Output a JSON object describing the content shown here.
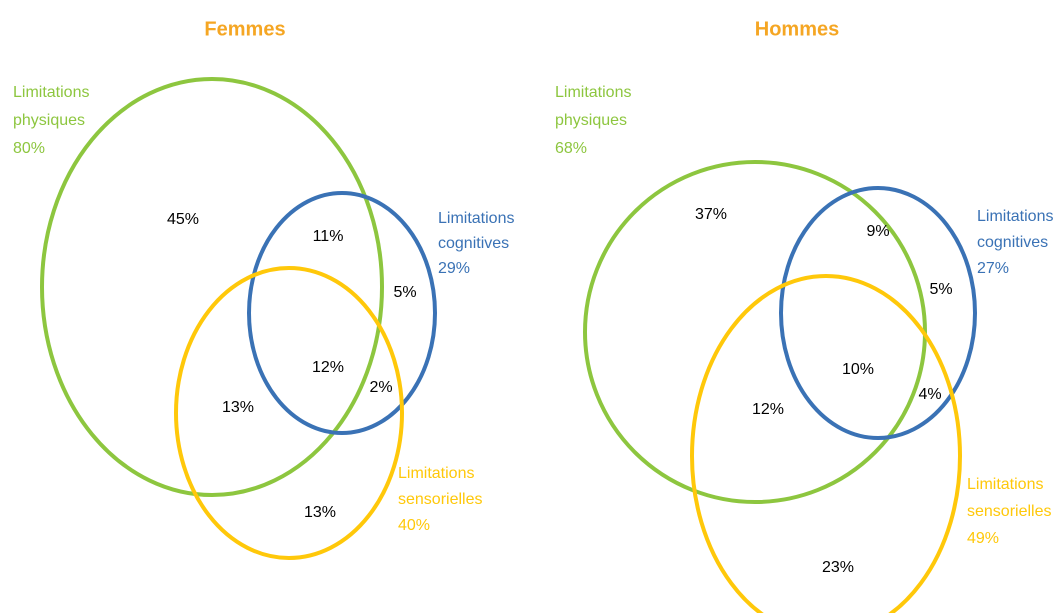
{
  "panels": [
    {
      "title": "Femmes",
      "sets": [
        {
          "lines": [
            "Limitations",
            "physiques"
          ],
          "total": "80%",
          "color": "#8dc63f"
        },
        {
          "lines": [
            "Limitations",
            "cognitives"
          ],
          "total": "29%",
          "color": "#3a72b5"
        },
        {
          "lines": [
            "Limitations",
            "sensorielles"
          ],
          "total": "40%",
          "color": "#ffc80a"
        }
      ],
      "regions": [
        "45%",
        "11%",
        "5%",
        "12%",
        "2%",
        "13%",
        "13%"
      ]
    },
    {
      "title": "Hommes",
      "sets": [
        {
          "lines": [
            "Limitations",
            "physiques"
          ],
          "total": "68%",
          "color": "#8dc63f"
        },
        {
          "lines": [
            "Limitations",
            "cognitives"
          ],
          "total": "27%",
          "color": "#3a72b5"
        },
        {
          "lines": [
            "Limitations",
            "sensorielles"
          ],
          "total": "49%",
          "color": "#ffc80a"
        }
      ],
      "regions": [
        "37%",
        "9%",
        "5%",
        "10%",
        "4%",
        "12%",
        "23%"
      ]
    }
  ]
}
